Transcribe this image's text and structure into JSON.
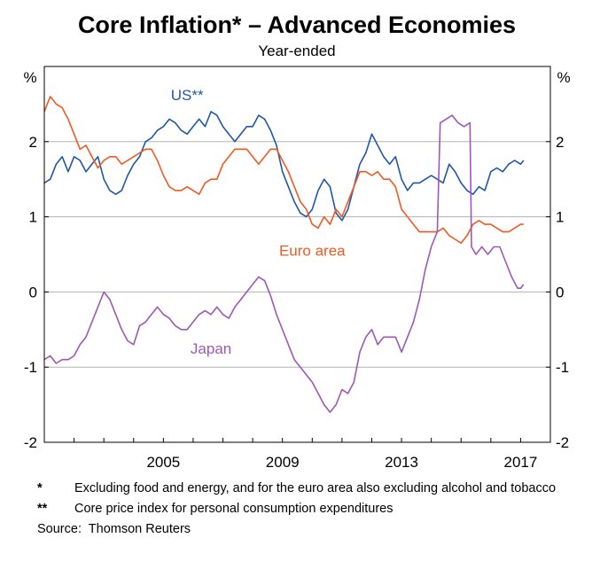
{
  "colors": {
    "us": "#1f57a6",
    "euro": "#f05a22",
    "japan": "#9b59b6",
    "grid": "#b3b3b3",
    "axis": "#000000"
  },
  "chart_data": {
    "type": "line",
    "title": "Core Inflation* – Advanced Economies",
    "subtitle": "Year-ended",
    "ylabel_left": "%",
    "ylabel_right": "%",
    "ylim": [
      -2,
      3
    ],
    "yticks": [
      -2,
      -1,
      0,
      1,
      2
    ],
    "xlim": [
      2001.0,
      2018.0
    ],
    "xticks": [
      {
        "value": 2005,
        "label": "2005"
      },
      {
        "value": 2009,
        "label": "2009"
      },
      {
        "value": 2013,
        "label": "2013"
      },
      {
        "value": 2017,
        "label": "2017"
      }
    ],
    "grid": true,
    "series": [
      {
        "name": "US**",
        "color_key": "us",
        "points": [
          [
            2001.0,
            1.45
          ],
          [
            2001.2,
            1.5
          ],
          [
            2001.4,
            1.7
          ],
          [
            2001.6,
            1.8
          ],
          [
            2001.8,
            1.6
          ],
          [
            2002.0,
            1.8
          ],
          [
            2002.2,
            1.75
          ],
          [
            2002.4,
            1.6
          ],
          [
            2002.6,
            1.7
          ],
          [
            2002.8,
            1.8
          ],
          [
            2003.0,
            1.5
          ],
          [
            2003.2,
            1.35
          ],
          [
            2003.4,
            1.3
          ],
          [
            2003.6,
            1.35
          ],
          [
            2003.8,
            1.55
          ],
          [
            2004.0,
            1.7
          ],
          [
            2004.2,
            1.8
          ],
          [
            2004.4,
            2.0
          ],
          [
            2004.6,
            2.05
          ],
          [
            2004.8,
            2.15
          ],
          [
            2005.0,
            2.2
          ],
          [
            2005.2,
            2.3
          ],
          [
            2005.4,
            2.25
          ],
          [
            2005.6,
            2.15
          ],
          [
            2005.8,
            2.1
          ],
          [
            2006.0,
            2.2
          ],
          [
            2006.2,
            2.3
          ],
          [
            2006.4,
            2.2
          ],
          [
            2006.6,
            2.4
          ],
          [
            2006.8,
            2.35
          ],
          [
            2007.0,
            2.2
          ],
          [
            2007.2,
            2.1
          ],
          [
            2007.4,
            2.0
          ],
          [
            2007.6,
            2.1
          ],
          [
            2007.8,
            2.2
          ],
          [
            2008.0,
            2.2
          ],
          [
            2008.2,
            2.35
          ],
          [
            2008.4,
            2.3
          ],
          [
            2008.6,
            2.15
          ],
          [
            2008.8,
            1.95
          ],
          [
            2009.0,
            1.6
          ],
          [
            2009.2,
            1.4
          ],
          [
            2009.4,
            1.2
          ],
          [
            2009.6,
            1.05
          ],
          [
            2009.8,
            1.0
          ],
          [
            2010.0,
            1.1
          ],
          [
            2010.2,
            1.35
          ],
          [
            2010.4,
            1.5
          ],
          [
            2010.6,
            1.4
          ],
          [
            2010.8,
            1.05
          ],
          [
            2011.0,
            0.95
          ],
          [
            2011.2,
            1.1
          ],
          [
            2011.4,
            1.4
          ],
          [
            2011.6,
            1.7
          ],
          [
            2011.8,
            1.85
          ],
          [
            2012.0,
            2.1
          ],
          [
            2012.2,
            1.95
          ],
          [
            2012.4,
            1.8
          ],
          [
            2012.6,
            1.7
          ],
          [
            2012.8,
            1.8
          ],
          [
            2013.0,
            1.5
          ],
          [
            2013.2,
            1.35
          ],
          [
            2013.4,
            1.45
          ],
          [
            2013.6,
            1.45
          ],
          [
            2013.8,
            1.5
          ],
          [
            2014.0,
            1.55
          ],
          [
            2014.2,
            1.5
          ],
          [
            2014.4,
            1.45
          ],
          [
            2014.6,
            1.7
          ],
          [
            2014.8,
            1.6
          ],
          [
            2015.0,
            1.45
          ],
          [
            2015.2,
            1.35
          ],
          [
            2015.4,
            1.3
          ],
          [
            2015.6,
            1.4
          ],
          [
            2015.8,
            1.35
          ],
          [
            2016.0,
            1.6
          ],
          [
            2016.2,
            1.65
          ],
          [
            2016.4,
            1.6
          ],
          [
            2016.6,
            1.7
          ],
          [
            2016.8,
            1.75
          ],
          [
            2017.0,
            1.7
          ],
          [
            2017.1,
            1.75
          ]
        ]
      },
      {
        "name": "Euro area",
        "color_key": "euro",
        "points": [
          [
            2001.0,
            2.4
          ],
          [
            2001.2,
            2.6
          ],
          [
            2001.4,
            2.5
          ],
          [
            2001.6,
            2.45
          ],
          [
            2001.8,
            2.3
          ],
          [
            2002.0,
            2.1
          ],
          [
            2002.2,
            1.9
          ],
          [
            2002.4,
            1.95
          ],
          [
            2002.6,
            1.8
          ],
          [
            2002.8,
            1.65
          ],
          [
            2003.0,
            1.75
          ],
          [
            2003.2,
            1.8
          ],
          [
            2003.4,
            1.8
          ],
          [
            2003.6,
            1.7
          ],
          [
            2003.8,
            1.75
          ],
          [
            2004.0,
            1.8
          ],
          [
            2004.2,
            1.85
          ],
          [
            2004.4,
            1.9
          ],
          [
            2004.6,
            1.9
          ],
          [
            2004.8,
            1.75
          ],
          [
            2005.0,
            1.55
          ],
          [
            2005.2,
            1.4
          ],
          [
            2005.4,
            1.35
          ],
          [
            2005.6,
            1.35
          ],
          [
            2005.8,
            1.4
          ],
          [
            2006.0,
            1.35
          ],
          [
            2006.2,
            1.3
          ],
          [
            2006.4,
            1.45
          ],
          [
            2006.6,
            1.5
          ],
          [
            2006.8,
            1.5
          ],
          [
            2007.0,
            1.7
          ],
          [
            2007.2,
            1.8
          ],
          [
            2007.4,
            1.9
          ],
          [
            2007.6,
            1.9
          ],
          [
            2007.8,
            1.9
          ],
          [
            2008.0,
            1.8
          ],
          [
            2008.2,
            1.7
          ],
          [
            2008.4,
            1.8
          ],
          [
            2008.6,
            1.9
          ],
          [
            2008.8,
            1.9
          ],
          [
            2009.0,
            1.75
          ],
          [
            2009.2,
            1.6
          ],
          [
            2009.4,
            1.4
          ],
          [
            2009.6,
            1.2
          ],
          [
            2009.8,
            1.1
          ],
          [
            2010.0,
            0.9
          ],
          [
            2010.2,
            0.85
          ],
          [
            2010.4,
            1.0
          ],
          [
            2010.6,
            0.9
          ],
          [
            2010.8,
            1.1
          ],
          [
            2011.0,
            1.0
          ],
          [
            2011.2,
            1.2
          ],
          [
            2011.4,
            1.4
          ],
          [
            2011.6,
            1.6
          ],
          [
            2011.8,
            1.6
          ],
          [
            2012.0,
            1.55
          ],
          [
            2012.2,
            1.6
          ],
          [
            2012.4,
            1.5
          ],
          [
            2012.6,
            1.5
          ],
          [
            2012.8,
            1.4
          ],
          [
            2013.0,
            1.1
          ],
          [
            2013.2,
            1.0
          ],
          [
            2013.4,
            0.9
          ],
          [
            2013.6,
            0.8
          ],
          [
            2013.8,
            0.8
          ],
          [
            2014.0,
            0.8
          ],
          [
            2014.2,
            0.8
          ],
          [
            2014.4,
            0.85
          ],
          [
            2014.6,
            0.75
          ],
          [
            2014.8,
            0.7
          ],
          [
            2015.0,
            0.65
          ],
          [
            2015.2,
            0.75
          ],
          [
            2015.4,
            0.9
          ],
          [
            2015.6,
            0.95
          ],
          [
            2015.8,
            0.9
          ],
          [
            2016.0,
            0.9
          ],
          [
            2016.2,
            0.85
          ],
          [
            2016.4,
            0.8
          ],
          [
            2016.6,
            0.8
          ],
          [
            2016.8,
            0.85
          ],
          [
            2017.0,
            0.9
          ],
          [
            2017.1,
            0.9
          ]
        ]
      },
      {
        "name": "Japan",
        "color_key": "japan",
        "points": [
          [
            2001.0,
            -0.9
          ],
          [
            2001.2,
            -0.85
          ],
          [
            2001.4,
            -0.95
          ],
          [
            2001.6,
            -0.9
          ],
          [
            2001.8,
            -0.9
          ],
          [
            2002.0,
            -0.85
          ],
          [
            2002.2,
            -0.7
          ],
          [
            2002.4,
            -0.6
          ],
          [
            2002.6,
            -0.4
          ],
          [
            2002.8,
            -0.2
          ],
          [
            2003.0,
            0.0
          ],
          [
            2003.2,
            -0.1
          ],
          [
            2003.4,
            -0.3
          ],
          [
            2003.6,
            -0.5
          ],
          [
            2003.8,
            -0.65
          ],
          [
            2004.0,
            -0.7
          ],
          [
            2004.2,
            -0.45
          ],
          [
            2004.4,
            -0.4
          ],
          [
            2004.6,
            -0.3
          ],
          [
            2004.8,
            -0.2
          ],
          [
            2005.0,
            -0.3
          ],
          [
            2005.2,
            -0.35
          ],
          [
            2005.4,
            -0.45
          ],
          [
            2005.6,
            -0.5
          ],
          [
            2005.8,
            -0.5
          ],
          [
            2006.0,
            -0.4
          ],
          [
            2006.2,
            -0.3
          ],
          [
            2006.4,
            -0.25
          ],
          [
            2006.6,
            -0.3
          ],
          [
            2006.8,
            -0.2
          ],
          [
            2007.0,
            -0.3
          ],
          [
            2007.2,
            -0.35
          ],
          [
            2007.4,
            -0.2
          ],
          [
            2007.6,
            -0.1
          ],
          [
            2007.8,
            0.0
          ],
          [
            2008.0,
            0.1
          ],
          [
            2008.2,
            0.2
          ],
          [
            2008.4,
            0.15
          ],
          [
            2008.6,
            -0.05
          ],
          [
            2008.8,
            -0.3
          ],
          [
            2009.0,
            -0.5
          ],
          [
            2009.2,
            -0.7
          ],
          [
            2009.4,
            -0.9
          ],
          [
            2009.6,
            -1.0
          ],
          [
            2009.8,
            -1.1
          ],
          [
            2010.0,
            -1.2
          ],
          [
            2010.2,
            -1.35
          ],
          [
            2010.4,
            -1.5
          ],
          [
            2010.6,
            -1.6
          ],
          [
            2010.8,
            -1.5
          ],
          [
            2011.0,
            -1.3
          ],
          [
            2011.2,
            -1.35
          ],
          [
            2011.4,
            -1.2
          ],
          [
            2011.6,
            -0.8
          ],
          [
            2011.8,
            -0.6
          ],
          [
            2012.0,
            -0.5
          ],
          [
            2012.2,
            -0.7
          ],
          [
            2012.4,
            -0.6
          ],
          [
            2012.6,
            -0.6
          ],
          [
            2012.8,
            -0.6
          ],
          [
            2013.0,
            -0.8
          ],
          [
            2013.2,
            -0.6
          ],
          [
            2013.4,
            -0.4
          ],
          [
            2013.6,
            -0.1
          ],
          [
            2013.8,
            0.3
          ],
          [
            2014.0,
            0.6
          ],
          [
            2014.2,
            0.8
          ],
          [
            2014.3,
            2.25
          ],
          [
            2014.5,
            2.3
          ],
          [
            2014.7,
            2.35
          ],
          [
            2014.9,
            2.25
          ],
          [
            2015.1,
            2.2
          ],
          [
            2015.3,
            2.25
          ],
          [
            2015.35,
            0.6
          ],
          [
            2015.5,
            0.5
          ],
          [
            2015.7,
            0.6
          ],
          [
            2015.9,
            0.5
          ],
          [
            2016.1,
            0.6
          ],
          [
            2016.3,
            0.6
          ],
          [
            2016.5,
            0.4
          ],
          [
            2016.7,
            0.2
          ],
          [
            2016.9,
            0.05
          ],
          [
            2017.0,
            0.05
          ],
          [
            2017.1,
            0.1
          ]
        ]
      }
    ],
    "labels": [
      {
        "text": "US**",
        "series": 0,
        "anchor": [
          2005.8,
          2.55
        ]
      },
      {
        "text": "Euro area",
        "series": 1,
        "anchor": [
          2010.0,
          0.48
        ]
      },
      {
        "text": "Japan",
        "series": 2,
        "anchor": [
          2006.6,
          -0.82
        ]
      }
    ]
  },
  "footnotes": [
    {
      "mark": "*",
      "text": "Excluding food and energy, and for the euro area also excluding alcohol and tobacco"
    },
    {
      "mark": "**",
      "text": "Core price index for personal consumption expenditures"
    }
  ],
  "source": {
    "label": "Source:",
    "text": "Thomson Reuters"
  }
}
